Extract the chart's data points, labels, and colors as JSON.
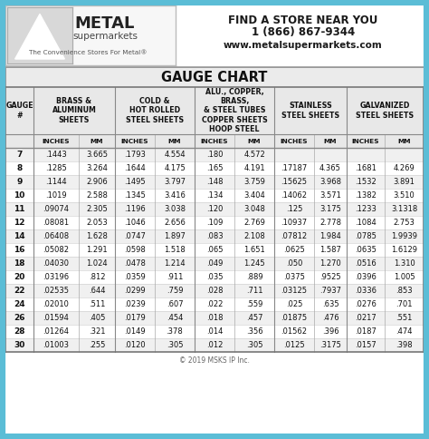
{
  "title": "GAUGE CHART",
  "copyright": "© 2019 MSKS IP Inc.",
  "contact_line1": "FIND A STORE NEAR YOU",
  "contact_line2": "1 (866) 867-9344",
  "contact_line3": "www.metalsupermarkets.com",
  "tagline": "The Convenience Stores For Metal®",
  "outer_border": "#5bbdd6",
  "rows": [
    [
      "7",
      ".1443",
      "3.665",
      ".1793",
      "4.554",
      ".180",
      "4.572",
      "",
      "",
      "",
      ""
    ],
    [
      "8",
      ".1285",
      "3.264",
      ".1644",
      "4.175",
      ".165",
      "4.191",
      ".17187",
      "4.365",
      ".1681",
      "4.269"
    ],
    [
      "9",
      ".1144",
      "2.906",
      ".1495",
      "3.797",
      ".148",
      "3.759",
      ".15625",
      "3.968",
      ".1532",
      "3.891"
    ],
    [
      "10",
      ".1019",
      "2.588",
      ".1345",
      "3.416",
      ".134",
      "3.404",
      ".14062",
      "3.571",
      ".1382",
      "3.510"
    ],
    [
      "11",
      ".09074",
      "2.305",
      ".1196",
      "3.038",
      ".120",
      "3.048",
      ".125",
      "3.175",
      ".1233",
      "3.1318"
    ],
    [
      "12",
      ".08081",
      "2.053",
      ".1046",
      "2.656",
      ".109",
      "2.769",
      ".10937",
      "2.778",
      ".1084",
      "2.753"
    ],
    [
      "14",
      ".06408",
      "1.628",
      ".0747",
      "1.897",
      ".083",
      "2.108",
      ".07812",
      "1.984",
      ".0785",
      "1.9939"
    ],
    [
      "16",
      ".05082",
      "1.291",
      ".0598",
      "1.518",
      ".065",
      "1.651",
      ".0625",
      "1.587",
      ".0635",
      "1.6129"
    ],
    [
      "18",
      ".04030",
      "1.024",
      ".0478",
      "1.214",
      ".049",
      "1.245",
      ".050",
      "1.270",
      ".0516",
      "1.310"
    ],
    [
      "20",
      ".03196",
      ".812",
      ".0359",
      ".911",
      ".035",
      ".889",
      ".0375",
      ".9525",
      ".0396",
      "1.005"
    ],
    [
      "22",
      ".02535",
      ".644",
      ".0299",
      ".759",
      ".028",
      ".711",
      ".03125",
      ".7937",
      ".0336",
      ".853"
    ],
    [
      "24",
      ".02010",
      ".511",
      ".0239",
      ".607",
      ".022",
      ".559",
      ".025",
      ".635",
      ".0276",
      ".701"
    ],
    [
      "26",
      ".01594",
      ".405",
      ".0179",
      ".454",
      ".018",
      ".457",
      ".01875",
      ".476",
      ".0217",
      ".551"
    ],
    [
      "28",
      ".01264",
      ".321",
      ".0149",
      ".378",
      ".014",
      ".356",
      ".01562",
      ".396",
      ".0187",
      ".474"
    ],
    [
      "30",
      ".01003",
      ".255",
      ".0120",
      ".305",
      ".012",
      ".305",
      ".0125",
      ".3175",
      ".0157",
      ".398"
    ]
  ]
}
